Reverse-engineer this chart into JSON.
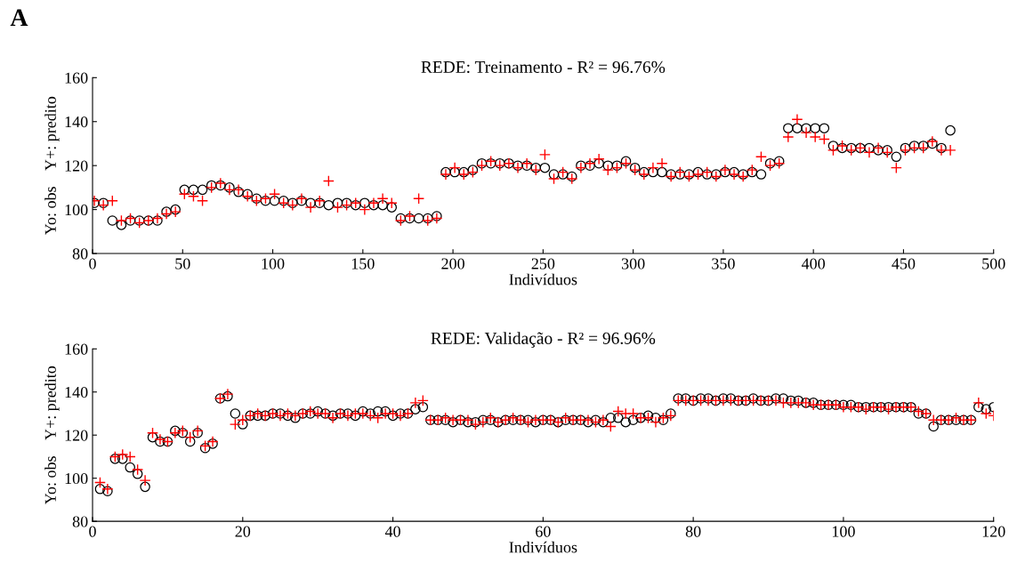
{
  "chart_data": [
    {
      "type": "scatter",
      "title": "REDE: Treinamento - R² = 96.76%",
      "xlabel": "Indivíduos",
      "ylabel": "Yo: obs    Y+: predito",
      "annotations": [
        "A"
      ],
      "xlim": [
        0,
        500
      ],
      "ylim": [
        80,
        160
      ],
      "xticks": [
        0,
        50,
        100,
        150,
        200,
        250,
        300,
        350,
        400,
        450,
        500
      ],
      "yticks": [
        80,
        100,
        120,
        140,
        160
      ],
      "grid": false,
      "x": [
        1,
        6,
        11,
        16,
        21,
        26,
        31,
        36,
        41,
        46,
        51,
        56,
        61,
        66,
        71,
        76,
        81,
        86,
        91,
        96,
        101,
        106,
        111,
        116,
        121,
        126,
        131,
        136,
        141,
        146,
        151,
        156,
        161,
        166,
        171,
        176,
        181,
        186,
        191,
        196,
        201,
        206,
        211,
        216,
        221,
        226,
        231,
        236,
        241,
        246,
        251,
        256,
        261,
        266,
        271,
        276,
        281,
        286,
        291,
        296,
        301,
        306,
        311,
        316,
        321,
        326,
        331,
        336,
        341,
        346,
        351,
        356,
        361,
        366,
        371,
        376,
        381,
        386,
        391,
        396,
        401,
        406,
        411,
        416,
        421,
        426,
        431,
        436,
        441,
        446,
        451,
        456,
        461,
        466,
        471,
        476
      ],
      "series": [
        {
          "color": "#000000",
          "marker": "circle",
          "values": [
            103,
            103,
            95,
            93,
            95,
            95,
            95,
            95,
            99,
            100,
            109,
            109,
            109,
            111,
            111,
            110,
            108,
            107,
            105,
            104,
            104,
            104,
            103,
            104,
            103,
            103,
            102,
            103,
            103,
            102,
            103,
            102,
            102,
            101,
            96,
            96,
            96,
            96,
            97,
            117,
            117,
            117,
            118,
            121,
            121,
            121,
            121,
            120,
            120,
            119,
            119,
            116,
            116,
            115,
            120,
            120,
            121,
            120,
            120,
            122,
            119,
            117,
            117,
            117,
            116,
            116,
            116,
            117,
            116,
            116,
            117,
            117,
            116,
            117,
            116,
            121,
            122,
            137,
            137,
            137,
            137,
            137,
            129,
            128,
            128,
            128,
            128,
            127,
            127,
            124,
            128,
            129,
            129,
            130,
            128,
            136
          ]
        },
        {
          "color": "#ff0000",
          "marker": "cross",
          "values": [
            104,
            102,
            104,
            95,
            96,
            94,
            95,
            96,
            98,
            99,
            107,
            106,
            104,
            110,
            112,
            109,
            109,
            106,
            104,
            105,
            107,
            103,
            102,
            105,
            101,
            104,
            113,
            101,
            102,
            103,
            100,
            103,
            105,
            103,
            95,
            97,
            105,
            95,
            96,
            116,
            119,
            116,
            117,
            120,
            122,
            120,
            121,
            119,
            121,
            118,
            125,
            114,
            117,
            114,
            119,
            121,
            123,
            118,
            119,
            121,
            118,
            116,
            119,
            121,
            115,
            117,
            115,
            116,
            117,
            115,
            118,
            116,
            115,
            118,
            124,
            120,
            121,
            133,
            141,
            135,
            133,
            132,
            127,
            129,
            127,
            128,
            126,
            128,
            126,
            119,
            127,
            128,
            128,
            131,
            127,
            127
          ]
        }
      ]
    },
    {
      "type": "scatter",
      "title": "REDE: Validação - R² = 96.96%",
      "xlabel": "Indivíduos",
      "ylabel": "Yo: obs    Y+: predito",
      "xlim": [
        0,
        120
      ],
      "ylim": [
        80,
        160
      ],
      "xticks": [
        0,
        20,
        40,
        60,
        80,
        100,
        120
      ],
      "yticks": [
        80,
        100,
        120,
        140,
        160
      ],
      "grid": false,
      "x": [
        1,
        2,
        3,
        4,
        5,
        6,
        7,
        8,
        9,
        10,
        11,
        12,
        13,
        14,
        15,
        16,
        17,
        18,
        19,
        20,
        21,
        22,
        23,
        24,
        25,
        26,
        27,
        28,
        29,
        30,
        31,
        32,
        33,
        34,
        35,
        36,
        37,
        38,
        39,
        40,
        41,
        42,
        43,
        44,
        45,
        46,
        47,
        48,
        49,
        50,
        51,
        52,
        53,
        54,
        55,
        56,
        57,
        58,
        59,
        60,
        61,
        62,
        63,
        64,
        65,
        66,
        67,
        68,
        69,
        70,
        71,
        72,
        73,
        74,
        75,
        76,
        77,
        78,
        79,
        80,
        81,
        82,
        83,
        84,
        85,
        86,
        87,
        88,
        89,
        90,
        91,
        92,
        93,
        94,
        95,
        96,
        97,
        98,
        99,
        100,
        101,
        102,
        103,
        104,
        105,
        106,
        107,
        108,
        109,
        110,
        111,
        112,
        113,
        114,
        115,
        116,
        117,
        118,
        119,
        120
      ],
      "series": [
        {
          "color": "#000000",
          "marker": "circle",
          "values": [
            95,
            94,
            109,
            109,
            105,
            102,
            96,
            119,
            117,
            117,
            122,
            121,
            117,
            121,
            114,
            116,
            137,
            138,
            130,
            125,
            129,
            129,
            129,
            130,
            130,
            129,
            128,
            130,
            130,
            131,
            130,
            129,
            130,
            130,
            129,
            131,
            130,
            131,
            131,
            129,
            130,
            130,
            132,
            133,
            127,
            127,
            127,
            126,
            127,
            126,
            126,
            127,
            127,
            126,
            127,
            127,
            127,
            127,
            126,
            127,
            127,
            126,
            127,
            127,
            127,
            126,
            127,
            126,
            128,
            128,
            126,
            127,
            128,
            129,
            128,
            127,
            130,
            137,
            137,
            136,
            137,
            137,
            136,
            137,
            137,
            136,
            136,
            137,
            136,
            136,
            137,
            137,
            136,
            136,
            135,
            135,
            134,
            134,
            134,
            134,
            134,
            133,
            133,
            133,
            133,
            133,
            133,
            133,
            133,
            130,
            130,
            124,
            127,
            127,
            127,
            127,
            127,
            133,
            132,
            133
          ]
        },
        {
          "color": "#ff0000",
          "marker": "cross",
          "values": [
            98,
            95,
            110,
            111,
            110,
            104,
            99,
            121,
            118,
            117,
            121,
            122,
            119,
            122,
            115,
            117,
            137,
            139,
            125,
            127,
            129,
            130,
            129,
            130,
            129,
            130,
            129,
            130,
            131,
            130,
            130,
            128,
            130,
            129,
            130,
            130,
            129,
            128,
            130,
            130,
            129,
            130,
            135,
            136,
            127,
            127,
            128,
            127,
            127,
            127,
            125,
            126,
            128,
            126,
            127,
            128,
            127,
            126,
            127,
            127,
            127,
            126,
            128,
            127,
            127,
            127,
            126,
            127,
            124,
            131,
            130,
            130,
            128,
            128,
            126,
            128,
            129,
            136,
            136,
            136,
            136,
            136,
            136,
            136,
            136,
            136,
            136,
            136,
            136,
            136,
            136,
            135,
            135,
            135,
            135,
            134,
            134,
            134,
            134,
            133,
            133,
            133,
            132,
            133,
            133,
            132,
            133,
            133,
            133,
            131,
            130,
            127,
            127,
            127,
            128,
            127,
            127,
            135,
            130,
            129
          ]
        }
      ]
    }
  ]
}
